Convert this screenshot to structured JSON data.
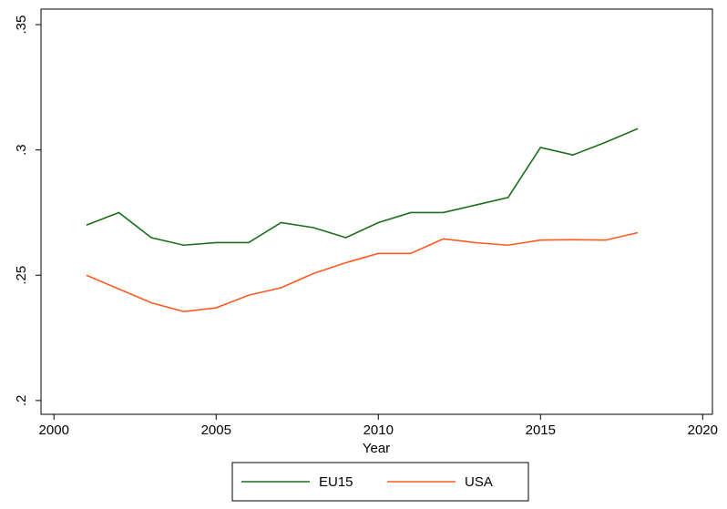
{
  "chart_data": {
    "type": "line",
    "x_label": "Year",
    "x": [
      2001,
      2002,
      2003,
      2004,
      2005,
      2006,
      2007,
      2008,
      2009,
      2010,
      2011,
      2012,
      2013,
      2014,
      2015,
      2016,
      2017,
      2018
    ],
    "series": [
      {
        "name": "EU15",
        "color": "#1b6e1b",
        "values": [
          0.27,
          0.275,
          0.265,
          0.262,
          0.263,
          0.263,
          0.271,
          0.269,
          0.265,
          0.271,
          0.275,
          0.275,
          0.278,
          0.281,
          0.301,
          0.298,
          0.303,
          0.3085
        ]
      },
      {
        "name": "USA",
        "color": "#ff5a1f",
        "values": [
          0.25,
          0.2445,
          0.239,
          0.2355,
          0.237,
          0.242,
          0.245,
          0.2507,
          0.255,
          0.2587,
          0.2587,
          0.2645,
          0.263,
          0.262,
          0.264,
          0.2642,
          0.264,
          0.267
        ]
      }
    ],
    "xlim": [
      1999.6,
      2020.3
    ],
    "xticks": [
      2000,
      2005,
      2010,
      2015,
      2020
    ],
    "ylim": [
      0.1945,
      0.3562
    ],
    "yticks": [
      {
        "value": 0.2,
        "label": ".2"
      },
      {
        "value": 0.25,
        "label": ".25"
      },
      {
        "value": 0.3,
        "label": ".3"
      },
      {
        "value": 0.35,
        "label": ".35"
      }
    ],
    "grid": false,
    "legend": "bottom"
  }
}
